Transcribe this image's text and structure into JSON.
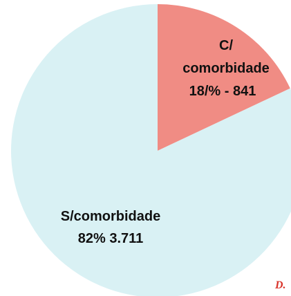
{
  "chart_data": {
    "type": "pie",
    "categories": [
      "C/ comorbidade",
      "S/comorbidade"
    ],
    "values": [
      18,
      82
    ],
    "value_labels": [
      "18/% - 841",
      "82% 3.711"
    ],
    "colors": [
      "#f08c84",
      "#d9f1f4"
    ],
    "annotation": "D."
  }
}
